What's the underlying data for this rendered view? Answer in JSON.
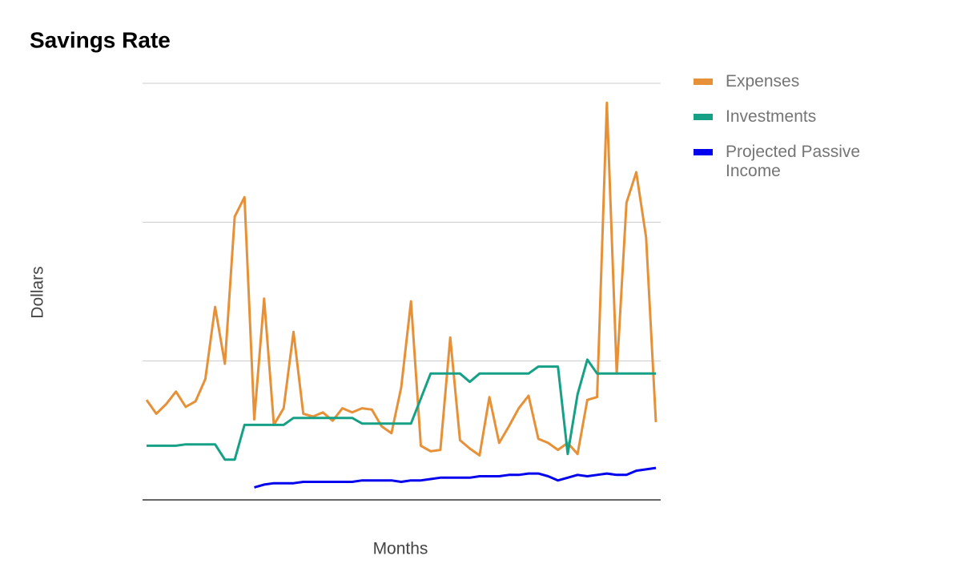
{
  "chart_data": {
    "type": "line",
    "title": "Savings Rate",
    "x_label": "Months",
    "y_label": "Dollars",
    "categories": [
      null,
      null,
      null,
      null,
      null,
      null,
      null,
      null,
      null,
      null,
      null,
      null,
      null,
      null,
      null,
      null,
      null,
      null,
      null,
      null,
      null,
      null,
      null,
      null,
      null,
      null,
      null,
      null,
      null,
      null,
      null,
      null,
      null,
      null,
      null,
      null,
      null,
      null,
      null,
      null,
      null,
      null,
      null,
      null,
      null,
      null,
      null,
      null,
      null,
      null,
      null,
      null,
      null
    ],
    "series": [
      {
        "name": "Expenses",
        "color": "#e69138",
        "values": [
          0.72,
          0.62,
          0.69,
          0.78,
          0.67,
          0.71,
          0.87,
          1.39,
          0.98,
          2.04,
          2.18,
          0.58,
          1.45,
          0.54,
          0.66,
          1.21,
          0.62,
          0.6,
          0.63,
          0.57,
          0.66,
          0.63,
          0.66,
          0.65,
          0.53,
          0.48,
          0.81,
          1.43,
          0.39,
          0.35,
          0.36,
          1.17,
          0.43,
          0.37,
          0.32,
          0.74,
          0.41,
          0.53,
          0.66,
          0.75,
          0.44,
          0.41,
          0.36,
          0.41,
          0.33,
          0.72,
          0.74,
          2.86,
          0.91,
          2.14,
          2.36,
          1.89,
          0.56
        ]
      },
      {
        "name": "Investments",
        "color": "#16a085",
        "values": [
          0.39,
          0.39,
          0.39,
          0.39,
          0.4,
          0.4,
          0.4,
          0.4,
          0.29,
          0.29,
          0.54,
          0.54,
          0.54,
          0.54,
          0.54,
          0.59,
          0.59,
          0.59,
          0.59,
          0.59,
          0.59,
          0.59,
          0.55,
          0.55,
          0.55,
          0.55,
          0.55,
          0.55,
          0.73,
          0.91,
          0.91,
          0.91,
          0.91,
          0.85,
          0.91,
          0.91,
          0.91,
          0.91,
          0.91,
          0.91,
          0.96,
          0.96,
          0.96,
          0.33,
          0.76,
          1.01,
          0.91,
          0.91,
          0.91,
          0.91,
          0.91,
          0.91,
          0.91
        ]
      },
      {
        "name": "Projected Passive Income",
        "color": "#0000ee",
        "values": [
          null,
          null,
          null,
          null,
          null,
          null,
          null,
          null,
          null,
          null,
          null,
          0.09,
          0.11,
          0.12,
          0.12,
          0.12,
          0.13,
          0.13,
          0.13,
          0.13,
          0.13,
          0.13,
          0.14,
          0.14,
          0.14,
          0.14,
          0.13,
          0.14,
          0.14,
          0.15,
          0.16,
          0.16,
          0.16,
          0.16,
          0.17,
          0.17,
          0.17,
          0.18,
          0.18,
          0.19,
          0.19,
          0.17,
          0.14,
          0.16,
          0.18,
          0.17,
          0.18,
          0.19,
          0.18,
          0.18,
          0.21,
          0.22,
          0.23
        ]
      }
    ],
    "ylim": [
      0,
      3
    ],
    "yticks": [
      0,
      1,
      2,
      3
    ],
    "grid": true
  }
}
